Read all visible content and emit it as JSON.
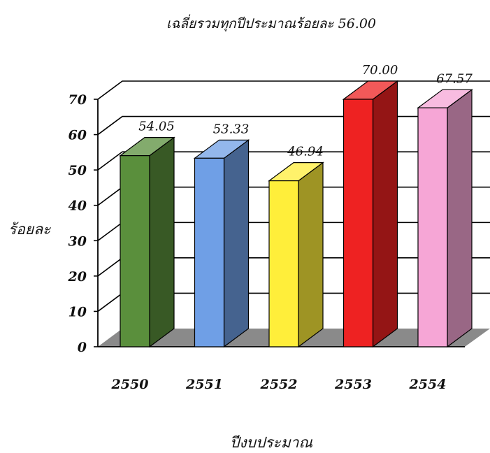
{
  "chart_data": {
    "type": "bar",
    "title": "เฉลี่ยรวมทุกปีประมาณร้อยละ 56.00",
    "xlabel": "ปีงบประมาณ",
    "ylabel": "ร้อยละ",
    "categories": [
      "2550",
      "2551",
      "2552",
      "2553",
      "2554"
    ],
    "values": [
      54.05,
      53.33,
      46.94,
      70.0,
      67.57
    ],
    "value_labels": [
      "54.05",
      "53.33",
      "46.94",
      "70.00",
      "67.57"
    ],
    "colors": [
      "#5a8f3c",
      "#6f9fe6",
      "#ffee3a",
      "#ee2222",
      "#f6a6d6"
    ],
    "ylim": [
      0,
      70
    ],
    "yticks": [
      "0",
      "10",
      "20",
      "30",
      "40",
      "50",
      "60",
      "70"
    ],
    "grid": true,
    "style": "3d"
  }
}
